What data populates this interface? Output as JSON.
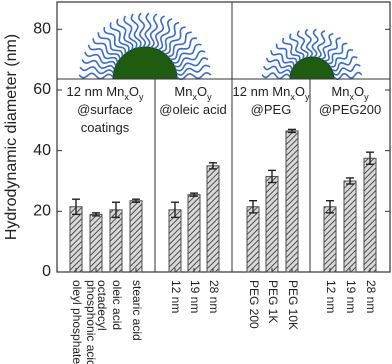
{
  "chart_data": {
    "type": "bar",
    "y_label": "Hydrodynamic diameter (nm)",
    "categories": [
      [
        "oleyl phosphate"
      ],
      [
        "octadecyl",
        "phosphonic acid"
      ],
      [
        "oleic acid"
      ],
      [
        "stearic acid"
      ],
      [
        "12 nm"
      ],
      [
        "19 nm"
      ],
      [
        "28 nm"
      ],
      [
        "PEG 200"
      ],
      [
        "PEG 1K"
      ],
      [
        "PEG 10K"
      ],
      [
        "12 nm"
      ],
      [
        "19 nm"
      ],
      [
        "28 nm"
      ]
    ],
    "series": [
      {
        "color": "#4d4d4d",
        "values": [
          21.5,
          19,
          20.5,
          23.5,
          20.5,
          25.5,
          35,
          21.5,
          31.5,
          46.5,
          21.5,
          30,
          37.5
        ],
        "errors": [
          2.5,
          0.5,
          2.5,
          0.5,
          2.5,
          0.5,
          1,
          2,
          2,
          0.5,
          2,
          1,
          2
        ]
      }
    ],
    "ylim": [
      0,
      89
    ],
    "yticks": [
      0,
      20,
      40,
      60,
      80
    ],
    "annotations": [
      {
        "lines": [
          [
            "12 nm Mn",
            "x",
            "O",
            "y"
          ],
          [
            "@surface"
          ],
          [
            "coatings"
          ]
        ]
      },
      {
        "lines": [
          [
            "Mn",
            "x",
            "O",
            "y"
          ],
          [
            "@oleic acid"
          ]
        ]
      },
      {
        "lines": [
          [
            "12 nm Mn",
            "x",
            "O",
            "y"
          ],
          [
            "@PEG"
          ]
        ]
      },
      {
        "lines": [
          [
            "Mn",
            "x",
            "O",
            "y"
          ],
          [
            "@PEG200"
          ]
        ]
      }
    ]
  }
}
